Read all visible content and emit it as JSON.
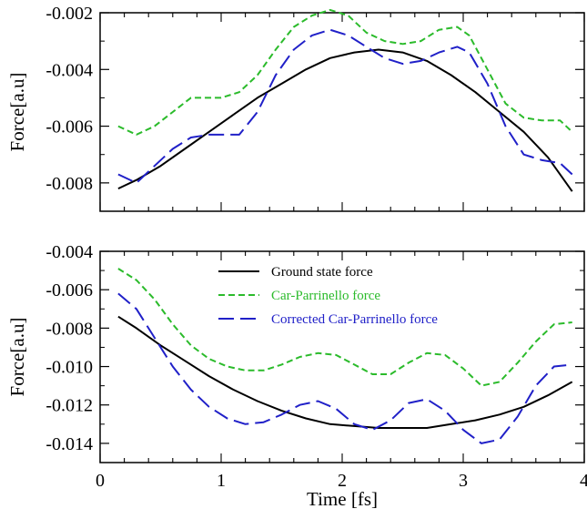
{
  "chart_data": [
    {
      "type": "line",
      "ylabel": "Force[a.u]",
      "xlabel": "",
      "xlim": [
        0,
        4
      ],
      "ylim": [
        -0.009,
        -0.002
      ],
      "yticks": [
        -0.008,
        -0.006,
        -0.004,
        -0.002
      ],
      "ytick_labels": [
        "-0.008",
        "-0.006",
        "-0.004",
        "-0.002"
      ],
      "xticks": [
        0,
        1,
        2,
        3,
        4
      ],
      "show_xtick_labels": false,
      "grid": false,
      "series": [
        {
          "color": "#000000",
          "dash": "solid",
          "x": [
            0.15,
            0.3,
            0.5,
            0.7,
            0.9,
            1.1,
            1.3,
            1.5,
            1.7,
            1.9,
            2.1,
            2.3,
            2.5,
            2.7,
            2.9,
            3.1,
            3.3,
            3.5,
            3.7,
            3.9
          ],
          "y": [
            -0.0082,
            -0.0079,
            -0.0074,
            -0.0068,
            -0.0062,
            -0.0056,
            -0.005,
            -0.0045,
            -0.004,
            -0.0036,
            -0.0034,
            -0.0033,
            -0.0034,
            -0.0037,
            -0.0042,
            -0.0048,
            -0.0055,
            -0.0062,
            -0.0071,
            -0.0083
          ]
        },
        {
          "color": "#2bbb2b",
          "dash": "short",
          "x": [
            0.15,
            0.3,
            0.45,
            0.6,
            0.75,
            0.9,
            1.0,
            1.15,
            1.3,
            1.45,
            1.6,
            1.75,
            1.9,
            2.05,
            2.2,
            2.35,
            2.5,
            2.65,
            2.8,
            2.95,
            3.05,
            3.2,
            3.35,
            3.5,
            3.65,
            3.8,
            3.9
          ],
          "y": [
            -0.006,
            -0.0063,
            -0.006,
            -0.0055,
            -0.005,
            -0.005,
            -0.005,
            -0.0048,
            -0.0042,
            -0.0033,
            -0.0025,
            -0.0021,
            -0.0019,
            -0.0021,
            -0.0027,
            -0.003,
            -0.0031,
            -0.003,
            -0.0026,
            -0.0025,
            -0.0028,
            -0.004,
            -0.0052,
            -0.0057,
            -0.0058,
            -0.0058,
            -0.0062
          ]
        },
        {
          "color": "#2020c8",
          "dash": "long",
          "x": [
            0.15,
            0.3,
            0.45,
            0.6,
            0.75,
            0.9,
            1.0,
            1.15,
            1.3,
            1.45,
            1.6,
            1.75,
            1.9,
            2.05,
            2.2,
            2.35,
            2.5,
            2.65,
            2.8,
            2.95,
            3.05,
            3.2,
            3.35,
            3.5,
            3.65,
            3.8,
            3.9
          ],
          "y": [
            -0.0077,
            -0.008,
            -0.0074,
            -0.0068,
            -0.0064,
            -0.0063,
            -0.0063,
            -0.0063,
            -0.0055,
            -0.0042,
            -0.0033,
            -0.0028,
            -0.0026,
            -0.0028,
            -0.0032,
            -0.0036,
            -0.0038,
            -0.0037,
            -0.0034,
            -0.0032,
            -0.0034,
            -0.0045,
            -0.006,
            -0.007,
            -0.0072,
            -0.0073,
            -0.0077
          ]
        }
      ]
    },
    {
      "type": "line",
      "ylabel": "Force[a.u]",
      "xlabel": "Time [fs]",
      "xlim": [
        0,
        4
      ],
      "ylim": [
        -0.015,
        -0.004
      ],
      "yticks": [
        -0.014,
        -0.012,
        -0.01,
        -0.008,
        -0.006,
        -0.004
      ],
      "ytick_labels": [
        "-0.014",
        "-0.012",
        "-0.010",
        "-0.008",
        "-0.006",
        "-0.004"
      ],
      "xticks": [
        0,
        1,
        2,
        3,
        4
      ],
      "xtick_labels": [
        "0",
        "1",
        "2",
        "3",
        "4"
      ],
      "show_xtick_labels": true,
      "grid": false,
      "legend_position": "top-center",
      "series": [
        {
          "name": "Ground state force",
          "color": "#000000",
          "dash": "solid",
          "x": [
            0.15,
            0.3,
            0.5,
            0.7,
            0.9,
            1.1,
            1.3,
            1.5,
            1.7,
            1.9,
            2.1,
            2.3,
            2.5,
            2.7,
            2.9,
            3.1,
            3.3,
            3.5,
            3.7,
            3.9
          ],
          "y": [
            -0.0074,
            -0.008,
            -0.0089,
            -0.0097,
            -0.0105,
            -0.0112,
            -0.0118,
            -0.0123,
            -0.0127,
            -0.013,
            -0.0131,
            -0.0132,
            -0.0132,
            -0.0132,
            -0.013,
            -0.0128,
            -0.0125,
            -0.0121,
            -0.0115,
            -0.0108
          ]
        },
        {
          "name": "Car-Parrinello force",
          "color": "#2bbb2b",
          "dash": "short",
          "x": [
            0.15,
            0.3,
            0.45,
            0.6,
            0.75,
            0.9,
            1.05,
            1.2,
            1.35,
            1.5,
            1.65,
            1.8,
            1.95,
            2.1,
            2.25,
            2.4,
            2.55,
            2.7,
            2.85,
            3.0,
            3.15,
            3.3,
            3.45,
            3.6,
            3.75,
            3.9
          ],
          "y": [
            -0.0049,
            -0.0055,
            -0.0065,
            -0.0078,
            -0.0089,
            -0.0096,
            -0.01,
            -0.0102,
            -0.0102,
            -0.0099,
            -0.0095,
            -0.0093,
            -0.0094,
            -0.0099,
            -0.0104,
            -0.0104,
            -0.0098,
            -0.0093,
            -0.0094,
            -0.0101,
            -0.011,
            -0.0108,
            -0.0098,
            -0.0087,
            -0.0078,
            -0.0077
          ]
        },
        {
          "name": "Corrected Car-Parrinello force",
          "color": "#2020c8",
          "dash": "long",
          "x": [
            0.15,
            0.3,
            0.45,
            0.6,
            0.75,
            0.9,
            1.05,
            1.2,
            1.35,
            1.5,
            1.65,
            1.8,
            1.95,
            2.1,
            2.25,
            2.4,
            2.55,
            2.7,
            2.85,
            3.0,
            3.15,
            3.3,
            3.45,
            3.6,
            3.75,
            3.9
          ],
          "y": [
            -0.0062,
            -0.007,
            -0.0085,
            -0.01,
            -0.0112,
            -0.0121,
            -0.0127,
            -0.013,
            -0.0129,
            -0.0125,
            -0.012,
            -0.0118,
            -0.0122,
            -0.013,
            -0.0133,
            -0.0128,
            -0.0119,
            -0.0117,
            -0.0123,
            -0.0133,
            -0.014,
            -0.0138,
            -0.0126,
            -0.011,
            -0.01,
            -0.0099
          ]
        }
      ]
    }
  ]
}
